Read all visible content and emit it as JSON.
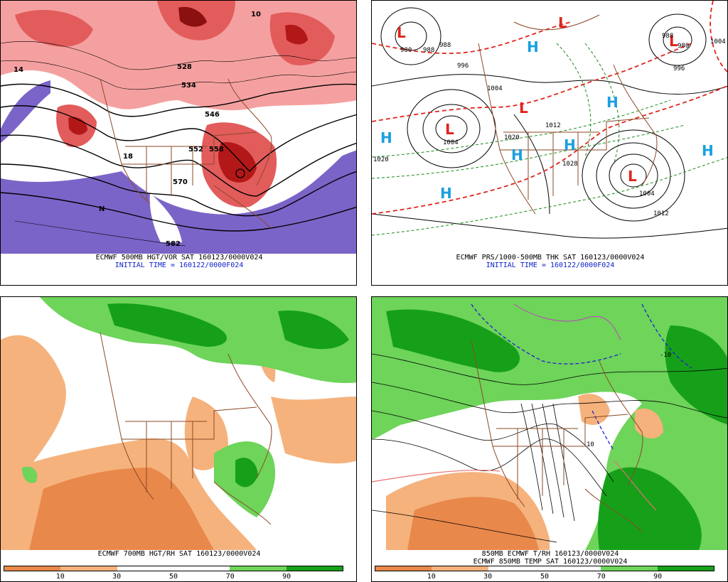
{
  "panels": [
    {
      "caption": "ECMWF 500MB HGT/VOR SAT 160123/0000V024",
      "initial_time": "INITIAL TIME = 160122/0000F024",
      "contour_labels": [
        "528",
        "534",
        "546",
        "552",
        "558",
        "570",
        "582",
        "10",
        "14",
        "18",
        "N"
      ]
    },
    {
      "caption": "ECMWF PRS/1000-500MB THK SAT 160123/0000V024",
      "initial_time": "INITIAL TIME = 160122/0000F024",
      "high_labels": [
        "H",
        "H",
        "H",
        "H",
        "H",
        "H",
        "H"
      ],
      "low_labels": [
        "L",
        "L",
        "L",
        "L",
        "L",
        "L"
      ],
      "pressure_labels": [
        "980",
        "988",
        "988",
        "996",
        "1004",
        "1004",
        "1020",
        "1012",
        "1020",
        "1028",
        "1004",
        "1012",
        "988",
        "980",
        "996",
        "1004"
      ]
    },
    {
      "caption": "ECMWF 700MB HGT/RH SAT 160123/0000V024",
      "colorbar_ticks": [
        "10",
        "30",
        "50",
        "70",
        "90"
      ]
    },
    {
      "caption_line1": "850MB ECMWF T/RH 160123/0000V024",
      "caption_line2": "ECMWF 850MB TEMP SAT 160123/0000V024",
      "colorbar_ticks": [
        "10",
        "30",
        "50",
        "70",
        "90"
      ],
      "contour_labels": [
        "-10",
        "10"
      ]
    }
  ],
  "colors": {
    "dry_dark": "#e8884a",
    "dry_light": "#f5b27c",
    "moist_light": "#6ed45a",
    "moist_dark": "#16a01a",
    "vort_light": "#f5a0a0",
    "vort_mid": "#e25c5c",
    "vort_dark": "#b31818",
    "vort_neg": "#7b64c8",
    "border": "#8b4a26",
    "high": "#1aa0e0",
    "low": "#e0241c",
    "thickness": "#e0241c",
    "thick_green": "#1a8a1a"
  }
}
